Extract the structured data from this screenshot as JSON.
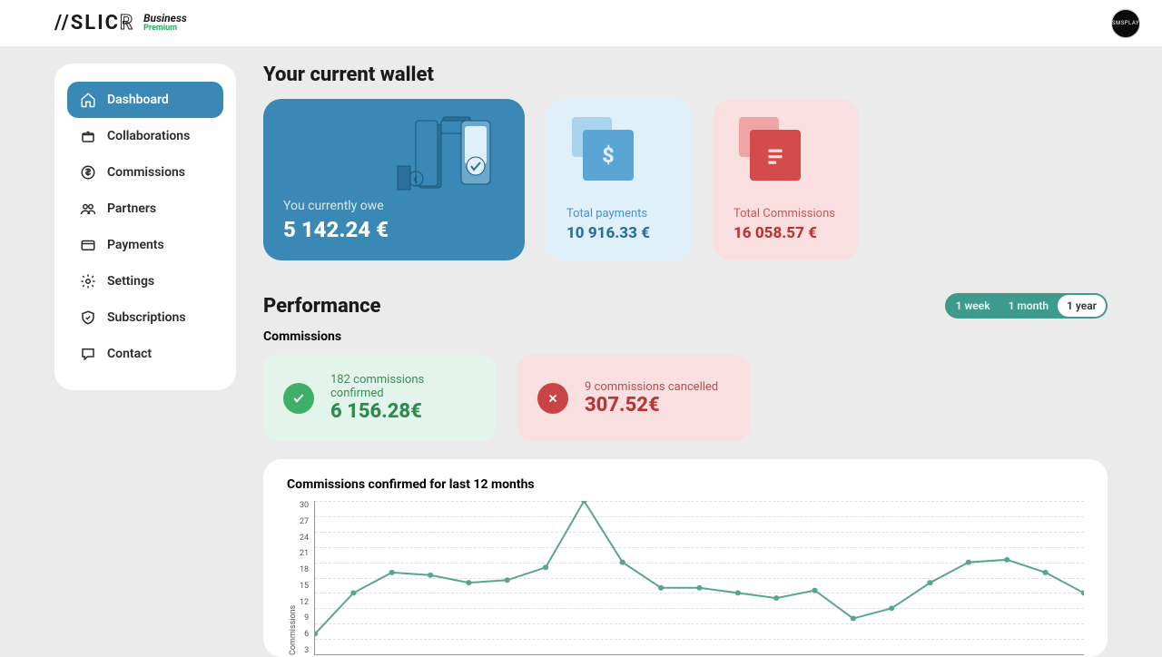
{
  "brand": {
    "name_part1": "//SLIC",
    "name_part2": "R",
    "sub1": "Business",
    "sub2": "Premium"
  },
  "avatar_text": "[SMSPLAY]",
  "sidebar": {
    "items": [
      {
        "label": "Dashboard",
        "icon": "home"
      },
      {
        "label": "Collaborations",
        "icon": "box"
      },
      {
        "label": "Commissions",
        "icon": "dollar"
      },
      {
        "label": "Partners",
        "icon": "users"
      },
      {
        "label": "Payments",
        "icon": "card"
      },
      {
        "label": "Settings",
        "icon": "gear"
      },
      {
        "label": "Subscriptions",
        "icon": "shield"
      },
      {
        "label": "Contact",
        "icon": "chat"
      }
    ],
    "active_index": 0
  },
  "wallet": {
    "title": "Your current wallet",
    "primary": {
      "label": "You currently owe",
      "value": "5 142.24 €"
    },
    "payments": {
      "label": "Total payments",
      "value": "10 916.33 €"
    },
    "commissions": {
      "label": "Total Commissions",
      "value": "16 058.57 €"
    }
  },
  "performance": {
    "title": "Performance",
    "range": {
      "options": [
        "1 week",
        "1 month",
        "1 year"
      ],
      "active_index": 2
    },
    "subtitle": "Commissions",
    "confirmed": {
      "line1": "182 commissions confirmed",
      "line2": "6 156.28€"
    },
    "cancelled": {
      "line1": "9 commissions cancelled",
      "line2": "307.52€"
    }
  },
  "chart": {
    "title": "Commissions confirmed for last 12 months",
    "ylabel": "Commissions",
    "ylim": [
      0,
      30
    ],
    "ytick_step": 3,
    "yticks": [
      30,
      27,
      24,
      21,
      18,
      15,
      12,
      9,
      6,
      3
    ],
    "grid_color": "#e0e0e0",
    "line_color": "#5aa786",
    "line_width": 2,
    "marker_color": "#5aa786",
    "marker_radius": 3,
    "background": "#ffffff",
    "xcount": 12,
    "values": [
      4,
      12,
      16,
      15.5,
      14,
      14.5,
      17,
      30,
      18,
      13,
      13,
      12,
      11,
      12.5,
      7,
      9,
      14,
      18,
      18.5,
      16,
      12
    ]
  },
  "colors": {
    "page_bg": "#ebebeb",
    "sidebar_active": "#3a88b5",
    "wallet_primary_bg": "#3a88b5",
    "wallet_blue_bg": "#e0f0fa",
    "wallet_red_bg": "#fadfe0",
    "stat_green_bg": "#e3f5ea",
    "stat_red_bg": "#fadfe0",
    "range_bg": "#3d9a8f"
  }
}
